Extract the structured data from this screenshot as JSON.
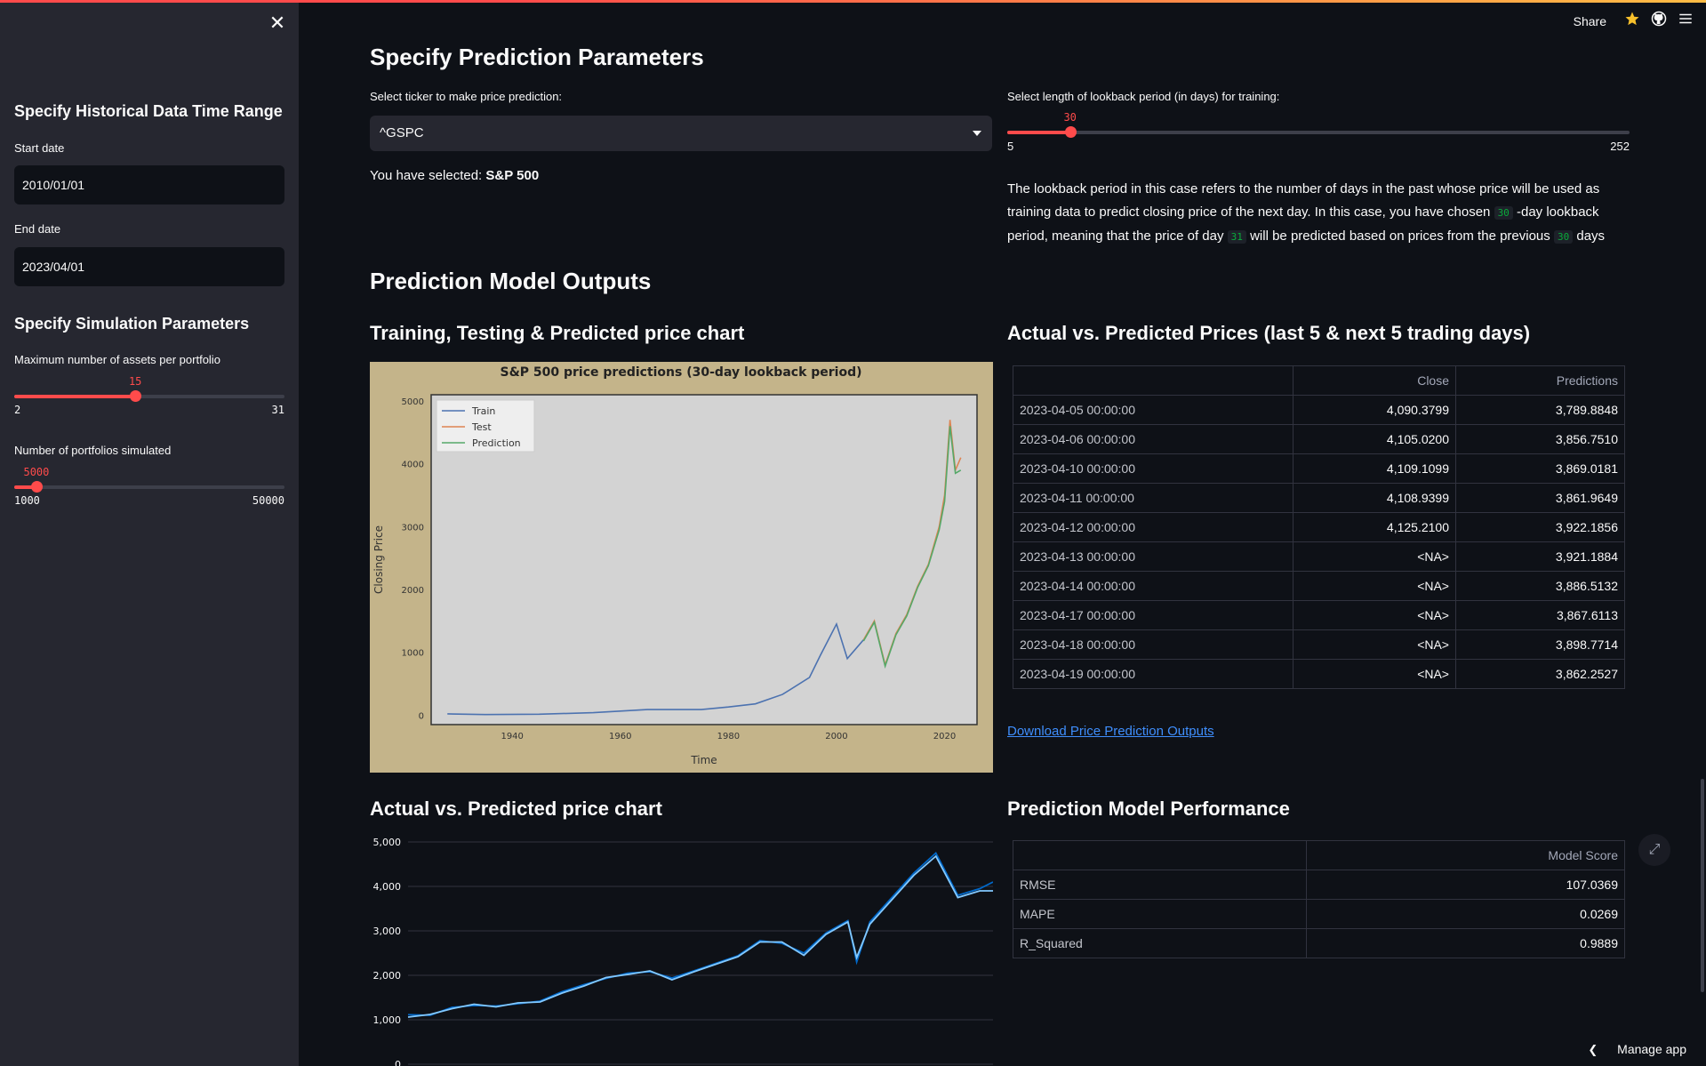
{
  "sidebar": {
    "close_icon": "close-icon",
    "hist_heading": "Specify Historical Data Time Range",
    "start_label": "Start date",
    "start_value": "2010/01/01",
    "end_label": "End date",
    "end_value": "2023/04/01",
    "sim_heading": "Specify Simulation Parameters",
    "assets_label": "Maximum number of assets per portfolio",
    "assets_value": "15",
    "assets_min": "2",
    "assets_max": "31",
    "assets_fraction": 0.448,
    "portfolios_label": "Number of portfolios simulated",
    "portfolios_value": "5000",
    "portfolios_min": "1000",
    "portfolios_max": "50000",
    "portfolios_fraction": 0.082
  },
  "toolbar": {
    "share_label": "Share",
    "star_icon": "star-icon",
    "github_icon": "github-icon",
    "menu_icon": "hamburger-menu-icon"
  },
  "params": {
    "heading": "Specify Prediction Parameters",
    "ticker_label": "Select ticker to make price prediction:",
    "ticker_value": "^GSPC",
    "selected_prefix": "You have selected:",
    "selected_name": "S&P 500",
    "lookback_label": "Select length of lookback period (in days) for training:",
    "lookback_value": "30",
    "lookback_min": "5",
    "lookback_max": "252",
    "lookback_fraction": 0.101,
    "explain_1": "The lookback period in this case refers to the number of days in the past whose price will be used as training data to predict closing price of the next day. In this case, you have chosen",
    "explain_code_1": "30",
    "explain_2": "-day lookback period, meaning that the price of day",
    "explain_code_2": "31",
    "explain_3": "will be predicted based on prices from the previous",
    "explain_code_3": "30",
    "explain_4": "days"
  },
  "outputs": {
    "heading": "Prediction Model Outputs",
    "train_chart_heading": "Training, Testing & Predicted price chart",
    "table_heading": "Actual vs. Predicted Prices (last 5 & next 5 trading days)",
    "table_columns": [
      "",
      "Close",
      "Predictions"
    ],
    "table_rows": [
      [
        "2023-04-05 00:00:00",
        "4,090.3799",
        "3,789.8848"
      ],
      [
        "2023-04-06 00:00:00",
        "4,105.0200",
        "3,856.7510"
      ],
      [
        "2023-04-10 00:00:00",
        "4,109.1099",
        "3,869.0181"
      ],
      [
        "2023-04-11 00:00:00",
        "4,108.9399",
        "3,861.9649"
      ],
      [
        "2023-04-12 00:00:00",
        "4,125.2100",
        "3,922.1856"
      ],
      [
        "2023-04-13 00:00:00",
        "<NA>",
        "3,921.1884"
      ],
      [
        "2023-04-14 00:00:00",
        "<NA>",
        "3,886.5132"
      ],
      [
        "2023-04-17 00:00:00",
        "<NA>",
        "3,867.6113"
      ],
      [
        "2023-04-18 00:00:00",
        "<NA>",
        "3,898.7714"
      ],
      [
        "2023-04-19 00:00:00",
        "<NA>",
        "3,862.2527"
      ]
    ],
    "download_label": "Download Price Prediction Outputs",
    "actual_chart_heading": "Actual vs. Predicted price chart",
    "perf_heading": "Prediction Model Performance",
    "perf_columns": [
      "",
      "Model Score"
    ],
    "perf_rows": [
      [
        "RMSE",
        "107.0369"
      ],
      [
        "MAPE",
        "0.0269"
      ],
      [
        "R_Squared",
        "0.9889"
      ]
    ],
    "expand_icon": "expand-icon"
  },
  "manage": {
    "label": "Manage app",
    "chevron_icon": "chevron-left-icon"
  },
  "chart_data": [
    {
      "type": "line",
      "title": "S&P 500 price predictions (30-day lookback period)",
      "xlabel": "Time",
      "ylabel": "Closing Price",
      "xlim": [
        1925,
        2026
      ],
      "ylim": [
        -150,
        5100
      ],
      "x_ticks": [
        "1940",
        "1960",
        "1980",
        "2000",
        "2020"
      ],
      "y_ticks": [
        "0",
        "1000",
        "2000",
        "3000",
        "4000",
        "5000"
      ],
      "legend": [
        "Train",
        "Test",
        "Prediction"
      ],
      "legend_position": "top-left",
      "colors": {
        "Train": "#4c72b0",
        "Test": "#dd8452",
        "Prediction": "#55a868",
        "background": "#c4b48a",
        "plot_bg": "#d3d3d3"
      },
      "series": [
        {
          "name": "Train",
          "x": [
            1928,
            1935,
            1945,
            1955,
            1965,
            1975,
            1980,
            1985,
            1990,
            1995,
            1997,
            2000,
            2002,
            2004,
            2005
          ],
          "values": [
            20,
            10,
            15,
            40,
            90,
            90,
            130,
            180,
            330,
            600,
            950,
            1450,
            900,
            1100,
            1200
          ]
        },
        {
          "name": "Test",
          "x": [
            2005,
            2007,
            2009,
            2011,
            2013,
            2015,
            2017,
            2019,
            2020,
            2021,
            2022,
            2023
          ],
          "values": [
            1200,
            1500,
            800,
            1300,
            1600,
            2050,
            2400,
            3000,
            3500,
            4700,
            3900,
            4100
          ]
        },
        {
          "name": "Prediction",
          "x": [
            2005,
            2007,
            2009,
            2011,
            2013,
            2015,
            2017,
            2019,
            2020,
            2021,
            2022,
            2023
          ],
          "values": [
            1180,
            1480,
            780,
            1280,
            1580,
            2030,
            2380,
            2950,
            3400,
            4600,
            3850,
            3900
          ]
        }
      ]
    },
    {
      "type": "line",
      "title": "",
      "y_ticks": [
        "0",
        "1,000",
        "2,000",
        "3,000",
        "4,000",
        "5,000"
      ],
      "ylim": [
        0,
        5000
      ],
      "x": [
        2010.0,
        2010.5,
        2011.0,
        2011.5,
        2012.0,
        2012.5,
        2013.0,
        2013.5,
        2014.0,
        2014.5,
        2015.0,
        2015.5,
        2016.0,
        2016.5,
        2017.0,
        2017.5,
        2018.0,
        2018.5,
        2019.0,
        2019.5,
        2020.0,
        2020.2,
        2020.5,
        2021.0,
        2021.5,
        2022.0,
        2022.5,
        2023.0,
        2023.3
      ],
      "series": [
        {
          "name": "",
          "values": [
            1115,
            1100,
            1280,
            1320,
            1310,
            1360,
            1420,
            1630,
            1790,
            1930,
            2050,
            2080,
            1940,
            2100,
            2270,
            2440,
            2780,
            2720,
            2500,
            2950,
            3230,
            2300,
            3200,
            3750,
            4300,
            4750,
            3800,
            3950,
            4100
          ]
        },
        {
          "name": "",
          "values": [
            1060,
            1120,
            1250,
            1350,
            1290,
            1380,
            1400,
            1600,
            1760,
            1950,
            2020,
            2100,
            1900,
            2080,
            2250,
            2420,
            2750,
            2750,
            2450,
            2920,
            3200,
            2400,
            3150,
            3700,
            4250,
            4680,
            3750,
            3900,
            3900
          ]
        }
      ],
      "colors": {
        "line1": "#0068c9",
        "line2": "#83c9ff"
      }
    }
  ]
}
